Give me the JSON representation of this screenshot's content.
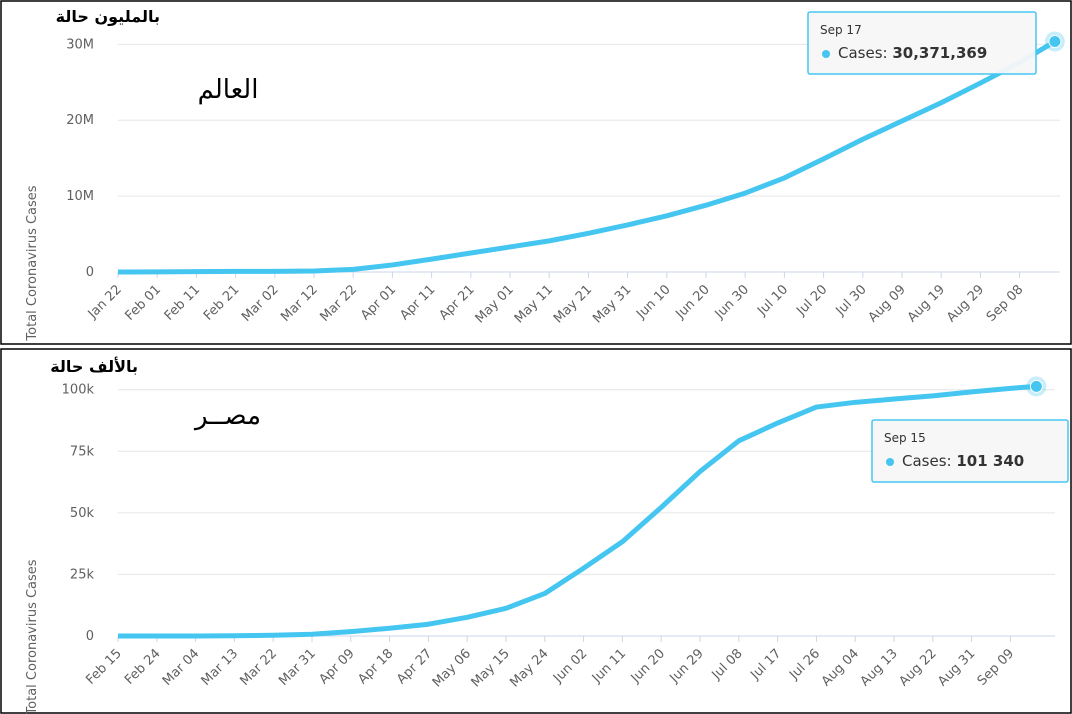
{
  "chart_data": [
    {
      "type": "line",
      "title": "العالم",
      "unit_note": "بالمليون حالة",
      "y_label": "Total Coronavirus Cases",
      "color": "#45c6f0",
      "grid": true,
      "categories": [
        "Jan 22",
        "Feb 01",
        "Feb 11",
        "Feb 21",
        "Mar 02",
        "Mar 12",
        "Mar 22",
        "Apr 01",
        "Apr 11",
        "Apr 21",
        "May 01",
        "May 11",
        "May 21",
        "May 31",
        "Jun 10",
        "Jun 20",
        "Jun 30",
        "Jul 10",
        "Jul 20",
        "Jul 30",
        "Aug 09",
        "Aug 19",
        "Aug 29",
        "Sep 08"
      ],
      "values": [
        600,
        12000,
        44000,
        77000,
        90000,
        130000,
        340000,
        930000,
        1700000,
        2500000,
        3300000,
        4100000,
        5100000,
        6200000,
        7400000,
        8800000,
        10400000,
        12400000,
        14900000,
        17500000,
        19900000,
        22300000,
        24900000,
        27600000
      ],
      "ylim": [
        0,
        34000000
      ],
      "yticks": [
        0,
        {
          "value": 10000000,
          "label": "10M"
        },
        {
          "value": 20000000,
          "label": "20M"
        },
        {
          "value": 30000000,
          "label": "30M"
        }
      ],
      "highlight": {
        "x": "Sep 17",
        "label": "Cases:",
        "value": 30371369,
        "value_label": "30,371,369"
      }
    },
    {
      "type": "line",
      "title": "مصــر",
      "unit_note": "بالألف حالة",
      "y_label": "Total Coronavirus Cases",
      "color": "#45c6f0",
      "grid": true,
      "categories": [
        "Feb 15",
        "Feb 24",
        "Mar 04",
        "Mar 13",
        "Mar 22",
        "Mar 31",
        "Apr 09",
        "Apr 18",
        "Apr 27",
        "May 06",
        "May 15",
        "May 24",
        "Jun 02",
        "Jun 11",
        "Jun 20",
        "Jun 29",
        "Jul 08",
        "Jul 17",
        "Jul 26",
        "Aug 04",
        "Aug 13",
        "Aug 22",
        "Aug 31",
        "Sep 09"
      ],
      "values": [
        1,
        1,
        3,
        80,
        327,
        710,
        1794,
        3144,
        4782,
        7588,
        11228,
        17265,
        27536,
        38284,
        52211,
        66754,
        79254,
        86474,
        92947,
        94875,
        96220,
        97478,
        99115,
        100557
      ],
      "ylim": [
        0,
        108000
      ],
      "yticks": [
        0,
        {
          "value": 25000,
          "label": "25k"
        },
        {
          "value": 50000,
          "label": "50k"
        },
        {
          "value": 75000,
          "label": "75k"
        },
        {
          "value": 100000,
          "label": "100k"
        }
      ],
      "highlight": {
        "x": "Sep 15",
        "label": "Cases:",
        "value": 101340,
        "value_label": "101 340"
      }
    }
  ]
}
